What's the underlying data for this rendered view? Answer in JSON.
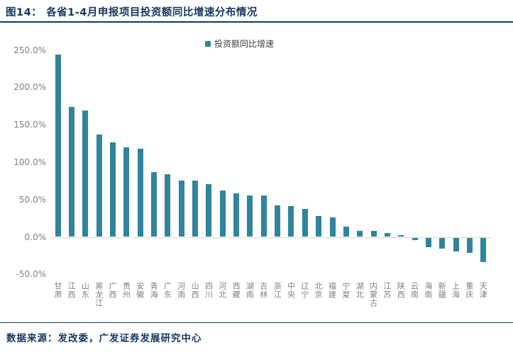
{
  "figure": {
    "title_prefix": "图14：",
    "title": "各省1-4月申报项目投资额同比增速分布情况",
    "source_note": "数据来源：发改委，广发证券发展研究中心"
  },
  "chart_data": {
    "type": "bar",
    "title": "各省1-4月申报项目投资额同比增速分布情况",
    "legend": [
      {
        "label": "投资额同比增速",
        "color": "#31849B"
      }
    ],
    "legend_position": "top-center",
    "categories": [
      "甘肃",
      "江西",
      "山东",
      "黑龙江",
      "广西",
      "贵州",
      "安徽",
      "青海",
      "广东",
      "河南",
      "山西",
      "四川",
      "河北",
      "西藏",
      "湖南",
      "吉林",
      "浙江",
      "中央",
      "辽宁",
      "北京",
      "福建",
      "宁夏",
      "湖北",
      "内蒙古",
      "江苏",
      "陕西",
      "云南",
      "海南",
      "新疆",
      "上海",
      "重庆",
      "天津"
    ],
    "values": [
      244,
      174,
      169,
      137,
      126,
      120,
      118,
      87,
      84,
      75,
      75,
      71,
      62,
      58,
      55,
      55,
      42,
      41,
      37,
      28,
      26,
      14,
      8,
      8,
      5,
      2,
      -3,
      -13,
      -15,
      -18,
      -20,
      -33
    ],
    "unit": "%",
    "xlabel": "",
    "ylabel": "",
    "ylim": [
      -50,
      250
    ],
    "yticks": [
      {
        "value": 250,
        "label": "250.0%"
      },
      {
        "value": 200,
        "label": "200.0%"
      },
      {
        "value": 150,
        "label": "150.0%"
      },
      {
        "value": 100,
        "label": "100.0%"
      },
      {
        "value": 50,
        "label": "50.0%"
      },
      {
        "value": 0,
        "label": "0.0%"
      },
      {
        "value": -50,
        "label": "-50.0%"
      }
    ],
    "grid": false
  },
  "colors": {
    "bar": "#31849B",
    "title_text": "#17375E",
    "rule": "#17375E",
    "axis_text": "#7F7F7F",
    "axis_line": "#D9D9D9",
    "legend_text": "#404040",
    "background": "#FFFFFF"
  }
}
